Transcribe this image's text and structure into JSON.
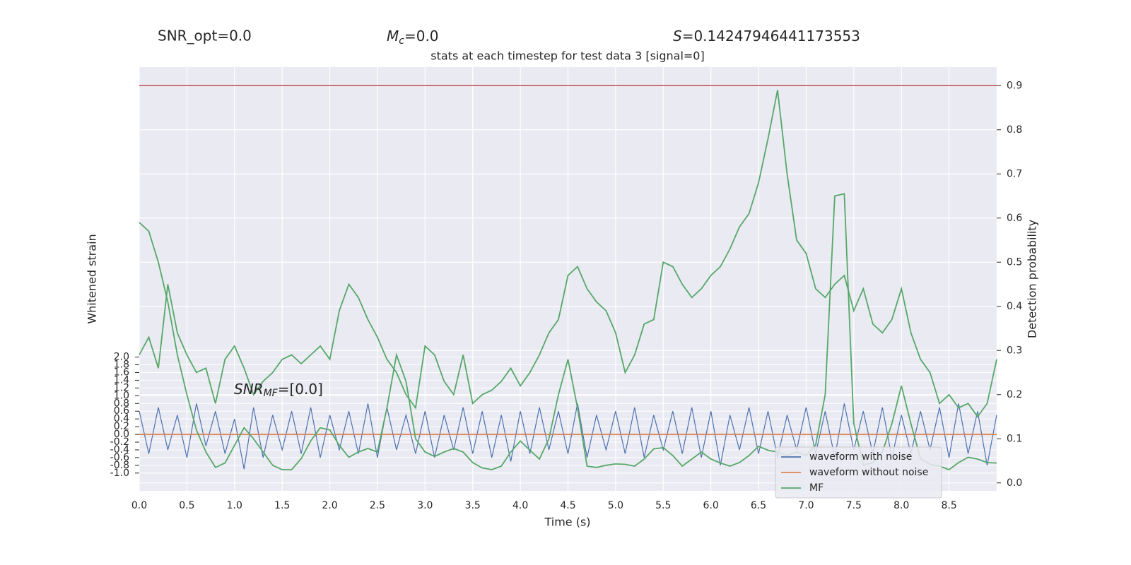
{
  "chart_data": {
    "type": "line",
    "title": "stats at each timestep for test data 3 [signal=0]",
    "annotations": [
      {
        "text": "SNR_opt=0.0"
      },
      {
        "symbol": "M",
        "sub": "c",
        "text": "=0.0"
      },
      {
        "symbol": "S",
        "text": "=0.14247946441173553"
      },
      {
        "symbol": "SNR",
        "sub": "MF",
        "text": "=[0.0]"
      }
    ],
    "xlabel": "Time (s)",
    "ylabel": "Whitened strain",
    "y2label": "Detection probability",
    "xlim": [
      0,
      9.0
    ],
    "xticks": [
      {
        "value": 0,
        "label": "0.0"
      },
      0.5,
      {
        "value": 1,
        "label": "1.0"
      },
      1.5,
      {
        "value": 2,
        "label": "2.0"
      },
      2.5,
      {
        "value": 3,
        "label": "3.0"
      },
      3.5,
      {
        "value": 4,
        "label": "4.0"
      },
      4.5,
      {
        "value": 5,
        "label": "5.0"
      },
      5.5,
      {
        "value": 6,
        "label": "6.0"
      },
      6.5,
      {
        "value": 7,
        "label": "7.0"
      },
      7.5,
      {
        "value": 8,
        "label": "8.0"
      },
      8.5
    ],
    "ylim": [
      -1.46,
      9.5
    ],
    "yticks": [
      {
        "value": -1,
        "label": "-1.0"
      },
      -0.8,
      -0.6,
      -0.4,
      -0.2,
      {
        "value": 0,
        "label": "0.0"
      },
      0.2,
      0.4,
      0.6,
      0.8,
      {
        "value": 1,
        "label": "1.0"
      },
      1.2,
      1.4,
      1.6,
      1.8,
      {
        "value": 2,
        "label": "2.0"
      }
    ],
    "y2lim": [
      -0.018,
      0.942
    ],
    "y2ticks": [
      {
        "value": 0,
        "label": "0.0"
      },
      0.1,
      0.2,
      0.3,
      0.4,
      0.5,
      0.6,
      0.7,
      0.8,
      0.9
    ],
    "grid": true,
    "legend": "lower right",
    "threshold": 0.9,
    "threshold_color": "#c44e52",
    "x": [
      0,
      0.1,
      0.2,
      0.3,
      0.4,
      0.5,
      0.6,
      0.7,
      0.8,
      0.9,
      1,
      1.1,
      1.2,
      1.3,
      1.4,
      1.5,
      1.6,
      1.7,
      1.8,
      1.9,
      2,
      2.1,
      2.2,
      2.3,
      2.4,
      2.5,
      2.6,
      2.7,
      2.8,
      2.9,
      3,
      3.1,
      3.2,
      3.3,
      3.4,
      3.5,
      3.6,
      3.7,
      3.8,
      3.9,
      4,
      4.1,
      4.2,
      4.3,
      4.4,
      4.5,
      4.6,
      4.7,
      4.8,
      4.9,
      5,
      5.1,
      5.2,
      5.3,
      5.4,
      5.5,
      5.6,
      5.7,
      5.8,
      5.9,
      6,
      6.1,
      6.2,
      6.3,
      6.4,
      6.5,
      6.6,
      6.7,
      6.8,
      6.9,
      7,
      7.1,
      7.2,
      7.3,
      7.4,
      7.5,
      7.6,
      7.7,
      7.8,
      7.9,
      8,
      8.1,
      8.2,
      8.3,
      8.4,
      8.5,
      8.6,
      8.7,
      8.8,
      8.9,
      9
    ],
    "series": [
      {
        "name": "waveform with noise",
        "color": "#4c72b0",
        "axis": "y",
        "values": [
          0.6,
          -0.5,
          0.7,
          -0.4,
          0.5,
          -0.6,
          0.8,
          -0.3,
          0.6,
          -0.5,
          0.4,
          -0.9,
          0.7,
          -0.6,
          0.5,
          -0.4,
          0.6,
          -0.5,
          0.7,
          -0.6,
          0.5,
          -0.4,
          0.6,
          -0.5,
          0.8,
          -0.6,
          0.7,
          -0.4,
          0.5,
          -0.5,
          0.6,
          -0.6,
          0.5,
          -0.4,
          0.7,
          -0.5,
          0.6,
          -0.6,
          0.5,
          -0.7,
          0.6,
          -0.5,
          0.7,
          -0.4,
          0.6,
          -0.5,
          0.8,
          -0.6,
          0.5,
          -0.4,
          0.6,
          -0.5,
          0.7,
          -0.6,
          0.5,
          -0.4,
          0.6,
          -0.5,
          0.7,
          -0.6,
          0.6,
          -0.8,
          0.5,
          -0.4,
          0.7,
          -0.5,
          0.6,
          -0.6,
          0.5,
          -0.4,
          0.7,
          -0.5,
          0.6,
          -0.6,
          0.8,
          -0.4,
          0.6,
          -0.5,
          0.7,
          -0.6,
          0.5,
          -0.5,
          0.6,
          -0.4,
          0.7,
          -0.6,
          0.8,
          -0.5,
          0.6,
          -0.8,
          0.5
        ]
      },
      {
        "name": "waveform without noise",
        "color": "#dd8452",
        "axis": "y",
        "values": [
          0,
          0,
          0,
          0,
          0,
          0,
          0,
          0,
          0,
          0,
          0,
          0,
          0,
          0,
          0,
          0,
          0,
          0,
          0,
          0,
          0,
          0,
          0,
          0,
          0,
          0,
          0,
          0,
          0,
          0,
          0,
          0,
          0,
          0,
          0,
          0,
          0,
          0,
          0,
          0,
          0,
          0,
          0,
          0,
          0,
          0,
          0,
          0,
          0,
          0,
          0,
          0,
          0,
          0,
          0,
          0,
          0,
          0,
          0,
          0,
          0,
          0,
          0,
          0,
          0,
          0,
          0,
          0,
          0,
          0,
          0,
          0,
          0,
          0,
          0,
          0,
          0,
          0,
          0,
          0,
          0,
          0,
          0,
          0,
          0,
          0,
          0,
          0,
          0,
          0,
          0
        ]
      },
      {
        "name": "MF",
        "color": "#55a868",
        "axis": "y2",
        "values": [
          0.59,
          0.57,
          0.5,
          0.41,
          0.29,
          0.2,
          0.12,
          0.07,
          0.035,
          0.045,
          0.085,
          0.125,
          0.1,
          0.07,
          0.04,
          0.03,
          0.03,
          0.055,
          0.095,
          0.125,
          0.12,
          0.085,
          0.058,
          0.07,
          0.078,
          0.07,
          0.17,
          0.29,
          0.23,
          0.1,
          0.07,
          0.06,
          0.07,
          0.078,
          0.07,
          0.046,
          0.034,
          0.03,
          0.038,
          0.07,
          0.095,
          0.074,
          0.054,
          0.1,
          0.2,
          0.28,
          0.17,
          0.038,
          0.035,
          0.04,
          0.043,
          0.042,
          0.038,
          0.054,
          0.077,
          0.08,
          0.062,
          0.038,
          0.054,
          0.07,
          0.054,
          0.045,
          0.038,
          0.046,
          0.062,
          0.083,
          0.074,
          0.07,
          0.062,
          0.07,
          0.062,
          0.086,
          0.2,
          0.65,
          0.655,
          0.135,
          0.04,
          0.046,
          0.07,
          0.134,
          0.22,
          0.134,
          0.055,
          0.042,
          0.038,
          0.03,
          0.046,
          0.058,
          0.054,
          0.046,
          0.045
        ]
      },
      {
        "color": "#55a868",
        "axis": "y2",
        "values": [
          0.29,
          0.33,
          0.26,
          0.45,
          0.34,
          0.29,
          0.25,
          0.26,
          0.18,
          0.28,
          0.31,
          0.26,
          0.2,
          0.23,
          0.25,
          0.28,
          0.29,
          0.27,
          0.29,
          0.31,
          0.28,
          0.39,
          0.45,
          0.42,
          0.37,
          0.33,
          0.28,
          0.25,
          0.2,
          0.17,
          0.31,
          0.29,
          0.23,
          0.2,
          0.29,
          0.18,
          0.2,
          0.21,
          0.23,
          0.26,
          0.22,
          0.25,
          0.29,
          0.34,
          0.37,
          0.47,
          0.49,
          0.44,
          0.41,
          0.39,
          0.34,
          0.25,
          0.29,
          0.36,
          0.37,
          0.5,
          0.49,
          0.45,
          0.42,
          0.44,
          0.47,
          0.49,
          0.53,
          0.58,
          0.61,
          0.68,
          0.78,
          0.89,
          0.7,
          0.55,
          0.52,
          0.44,
          0.42,
          0.45,
          0.47,
          0.39,
          0.44,
          0.36,
          0.34,
          0.37,
          0.44,
          0.34,
          0.28,
          0.25,
          0.18,
          0.2,
          0.17,
          0.18,
          0.15,
          0.18,
          0.28
        ]
      }
    ]
  }
}
